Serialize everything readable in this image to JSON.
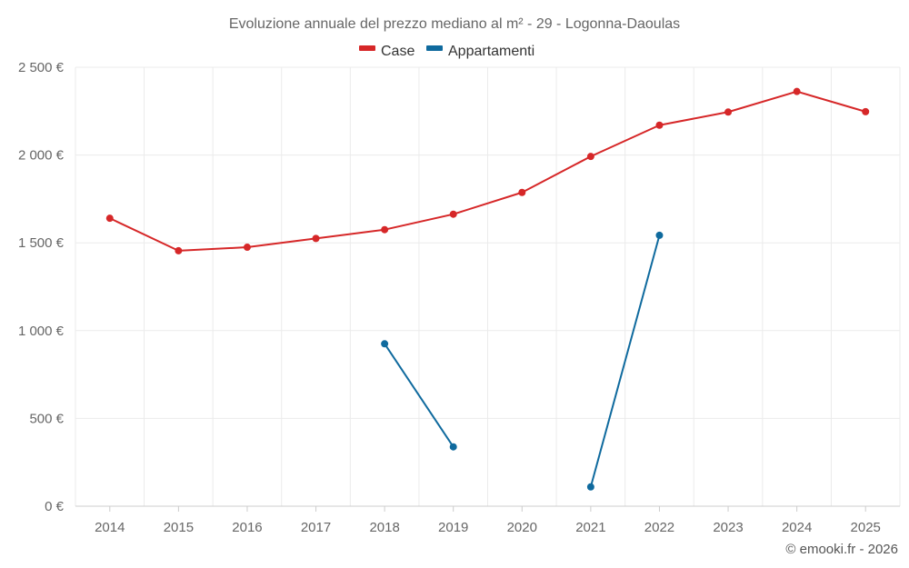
{
  "chart_data": {
    "type": "line",
    "title": "Evoluzione annuale del prezzo mediano al m² - 29 - Logonna-Daoulas",
    "categories": [
      "2014",
      "2015",
      "2016",
      "2017",
      "2018",
      "2019",
      "2020",
      "2021",
      "2022",
      "2023",
      "2024",
      "2025"
    ],
    "y_tick_labels": [
      "0 €",
      "500 €",
      "1 000 €",
      "1 500 €",
      "2 000 €",
      "2 500 €"
    ],
    "y_ticks": [
      0,
      500,
      1000,
      1500,
      2000,
      2500
    ],
    "ylim": [
      0,
      2500
    ],
    "grid": true,
    "legend_position": "top-center",
    "series": [
      {
        "name": "Case",
        "color": "#d62728",
        "values": [
          1640,
          1455,
          1475,
          1525,
          1575,
          1663,
          1787,
          1992,
          2170,
          2245,
          2362,
          2247
        ]
      },
      {
        "name": "Appartamenti",
        "color": "#0f6a9e",
        "values": [
          null,
          null,
          null,
          null,
          925,
          338,
          null,
          110,
          1543,
          null,
          null,
          null
        ]
      }
    ],
    "credit": "© emooki.fr - 2026"
  }
}
